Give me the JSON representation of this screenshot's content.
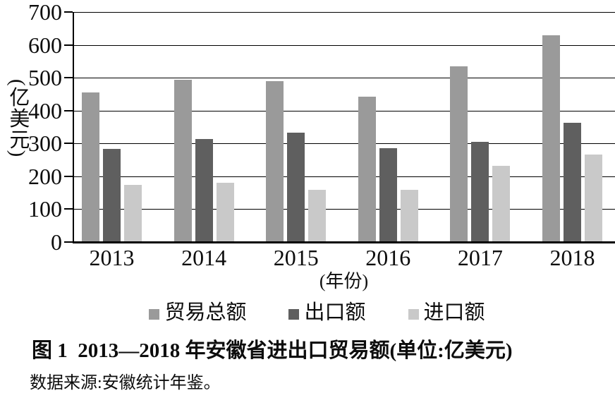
{
  "chart_data": {
    "type": "bar",
    "title": "",
    "categories": [
      "2013",
      "2014",
      "2015",
      "2016",
      "2017",
      "2018"
    ],
    "series": [
      {
        "key": "total",
        "name": "贸易总额",
        "color": "#9a9a9a",
        "values": [
          455,
          493,
          490,
          443,
          535,
          630
        ]
      },
      {
        "key": "export",
        "name": "出口额",
        "color": "#5f5f5f",
        "values": [
          283,
          313,
          332,
          285,
          305,
          362
        ]
      },
      {
        "key": "import",
        "name": "进口额",
        "color": "#c9c9c9",
        "values": [
          175,
          180,
          158,
          160,
          232,
          267
        ]
      }
    ],
    "y_axis": {
      "min": 0,
      "max": 700,
      "step": 100
    },
    "ylabel": "(亿美元)",
    "xlabel": "(年份)",
    "grid": "on",
    "legend_position": "bottom"
  },
  "colors": {
    "grid": "#000000",
    "axis": "#000000",
    "text": "#0d0d0d"
  },
  "caption": "图 1  2013—2018 年安徽省进出口贸易额(单位:亿美元)",
  "source": "数据来源:安徽统计年鉴。"
}
